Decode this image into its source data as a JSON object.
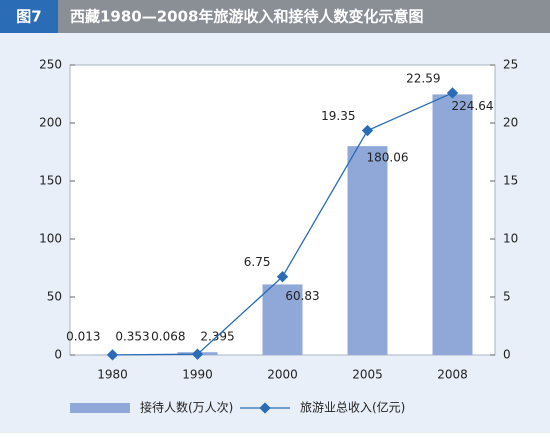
{
  "figure_label": "图7",
  "chart_data": {
    "type": "bar_line",
    "title": "西藏1980—2008年旅游收入和接待人数变化示意图",
    "categories": [
      "1980",
      "1990",
      "2000",
      "2005",
      "2008"
    ],
    "series": [
      {
        "name": "接待人数(万人次)",
        "type": "bar",
        "color": "#8fa8d8",
        "values": [
          0.353,
          2.395,
          60.83,
          180.06,
          224.64
        ]
      },
      {
        "name": "旅游业总收入(亿元)",
        "type": "line",
        "axis": "y2",
        "color": "#2a6cb5",
        "values": [
          0.013,
          0.068,
          6.75,
          19.35,
          22.59
        ]
      }
    ],
    "ylim": [
      0,
      250
    ],
    "yticks": [
      0,
      50,
      100,
      150,
      200,
      250
    ],
    "y2lim": [
      0,
      25
    ],
    "y2ticks": [
      0,
      5,
      10,
      15,
      20,
      25
    ],
    "legend": "bottom"
  }
}
